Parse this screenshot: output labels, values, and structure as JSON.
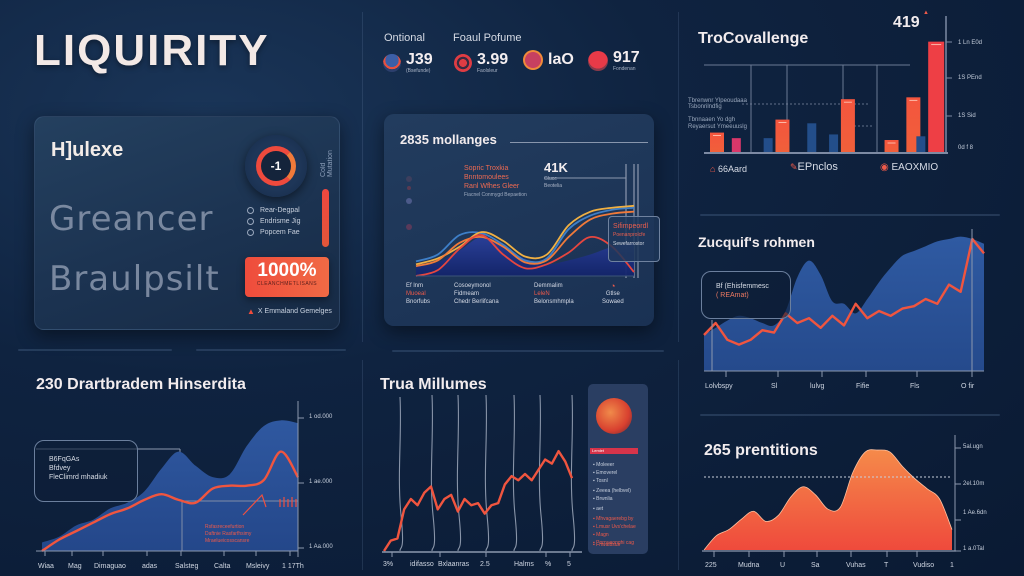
{
  "app": {
    "title": "LIQUIRITY"
  },
  "panel_overview": {
    "title": "H]ulexe",
    "headline_1": "Greancer",
    "headline_2": "Braulpsilt",
    "gauge_value": "-1",
    "side_label": "Cold Mutation",
    "options": [
      {
        "label": "Rear-Degpal",
        "selected": false
      },
      {
        "label": "Endrisme Jig",
        "selected": false
      },
      {
        "label": "Popcem Fae",
        "selected": false
      }
    ],
    "percent_value": "1000%",
    "percent_sublabel": "CLEANCHMETLISANS",
    "warning_text": "X Emmaland Gemelges",
    "accent": "#ef4c3c"
  },
  "stats": {
    "label_1": "Ontional",
    "label_2": "Foaul Pofume",
    "items": [
      {
        "icon": "orbit-icon",
        "value": "J39",
        "sub": "(Bsefunde)"
      },
      {
        "icon": "target-icon",
        "value": "3.99",
        "sub": "Faolsleur"
      },
      {
        "icon": "coin-icon",
        "value": "laO",
        "sub": ""
      },
      {
        "icon": "record-icon",
        "value": "917",
        "sub": "Fondenan"
      }
    ]
  },
  "mollanges_card": {
    "title": "2835 mollanges",
    "note_lines": [
      "Sopric Troxkia",
      "Bnntomoulees",
      "Ranl Wfhes Gleer"
    ],
    "note_sub": "Fiacnel Conmygd Bepaetion",
    "kpi_value": "41K",
    "kpi_sub": [
      "Gluce",
      "Beotelia"
    ],
    "tooltip": {
      "title": "Sifimpeordl",
      "line_1": "Poenanprolcfe",
      "line_2": "Sewefarrostor"
    },
    "footer_col_1": [
      "Ef lnm",
      "Muoeal",
      "Bnorfubs"
    ],
    "footer_col_2": [
      "Cosoeymonol",
      "Fidmeam",
      "Chedr Berlifcana"
    ],
    "footer_col_3": [
      "Demmalim",
      "LeleN",
      "Belonsmhmpla"
    ],
    "footer_col_4": [
      "Gtlse",
      "Sowaed"
    ],
    "chart_data": {
      "type": "line",
      "title": "2835 mollanges",
      "x": [
        0,
        1,
        2,
        3,
        4,
        5,
        6,
        7,
        8,
        9,
        10
      ],
      "series": [
        {
          "name": "Blue",
          "values": [
            15,
            22,
            42,
            44,
            32,
            16,
            18,
            48,
            62,
            68,
            70
          ]
        },
        {
          "name": "Yellow",
          "values": [
            12,
            18,
            30,
            45,
            36,
            20,
            22,
            52,
            66,
            70,
            72
          ]
        },
        {
          "name": "Orange",
          "values": [
            10,
            16,
            34,
            40,
            30,
            14,
            16,
            40,
            58,
            64,
            66
          ]
        },
        {
          "name": "Red",
          "values": [
            0,
            6,
            28,
            42,
            22,
            8,
            12,
            24,
            40,
            30,
            4
          ]
        }
      ],
      "ylim": [
        0,
        80
      ]
    }
  },
  "bar_panel": {
    "title": "TroCovallenge",
    "kpi": "419",
    "y_ticks": [
      "1 Ln E0d",
      "1S PEnd",
      "1S Sid",
      "0d f 8"
    ],
    "legend_lines": [
      "Tbrenwnr Ylpeoudaaa",
      "Tsbonrilndfig",
      "Tbnnaaen Yo dgh",
      "Reyaersut Ymeeuuslg"
    ],
    "footer": [
      {
        "icon": "home-icon",
        "label": "66Aard"
      },
      {
        "icon": "tag-icon",
        "label": "EPnclos"
      },
      {
        "icon": "badge-icon",
        "label": "EAOXMIO"
      }
    ],
    "chart_data": {
      "type": "bar",
      "title": "TroCovallenge",
      "categories": [
        "A",
        "B",
        "C",
        "D",
        "E",
        "F",
        "G",
        "H",
        "I",
        "J",
        "K"
      ],
      "series": [
        {
          "name": "Orange",
          "values": [
            22,
            0,
            0,
            36,
            0,
            0,
            58,
            0,
            14,
            60,
            0
          ]
        },
        {
          "name": "Pink",
          "values": [
            0,
            16,
            0,
            0,
            0,
            0,
            0,
            0,
            0,
            0,
            0
          ]
        },
        {
          "name": "Blue",
          "values": [
            0,
            0,
            16,
            0,
            32,
            20,
            0,
            0,
            0,
            18,
            0
          ]
        },
        {
          "name": "Red",
          "values": [
            0,
            0,
            0,
            0,
            0,
            0,
            0,
            0,
            0,
            0,
            120
          ]
        }
      ],
      "ylim": [
        0,
        125
      ]
    }
  },
  "zuquif_panel": {
    "title": "Zucquif's rohmen",
    "note_lines": [
      "Bf (Ehisfemmesc",
      "( REAmat)"
    ],
    "x_ticks": [
      "Lolvbspy",
      "Sl",
      "lulvg",
      "Fifie",
      "Fls",
      "O fir"
    ],
    "chart_data": {
      "type": "area",
      "title": "Zucquif's rohmen",
      "x": [
        0,
        1,
        2,
        3,
        4,
        5,
        6,
        7,
        8,
        9,
        10,
        11,
        12,
        13,
        14,
        15,
        16,
        17,
        18,
        19,
        20,
        21,
        22,
        23,
        24
      ],
      "series": [
        {
          "name": "Area",
          "values": [
            30,
            36,
            42,
            46,
            44,
            40,
            38,
            50,
            78,
            92,
            80,
            58,
            56,
            48,
            60,
            74,
            86,
            96,
            100,
            104,
            108,
            110,
            112,
            110,
            106
          ]
        },
        {
          "name": "Line",
          "values": [
            30,
            40,
            26,
            22,
            26,
            34,
            32,
            48,
            40,
            44,
            36,
            46,
            38,
            56,
            44,
            50,
            46,
            52,
            54,
            60,
            56,
            72,
            66,
            110,
            98
          ]
        }
      ],
      "ylim": [
        0,
        120
      ]
    }
  },
  "drartbradem_panel": {
    "title": "230 Drartbradem Hinserdita",
    "note_lines": [
      "B6FqGAs",
      "Bfdvey",
      "FleClimrd mhadiuk"
    ],
    "y_ticks": [
      "1 od.000",
      "1 ae.000",
      "1 Aa.000"
    ],
    "x_ticks": [
      "Wiaa",
      "Mag",
      "Dimaguao",
      "adas",
      "Salsteg",
      "Calta",
      "Msleivy",
      "1 17Th"
    ],
    "inset_text": [
      "Rsfasreceefurtion",
      "Daftnie Rasfarfhsimy",
      "Mraelueicosscansre"
    ],
    "chart_data": {
      "type": "area",
      "title": "230 Drartbradem Hinserdita",
      "x": [
        0,
        1,
        2,
        3,
        4,
        5,
        6,
        7,
        8,
        9,
        10,
        11,
        12,
        13,
        14,
        15
      ],
      "series": [
        {
          "name": "Area",
          "values": [
            6,
            10,
            18,
            22,
            30,
            34,
            42,
            58,
            70,
            60,
            52,
            54,
            74,
            88,
            92,
            90
          ]
        },
        {
          "name": "Line",
          "values": [
            0,
            8,
            14,
            20,
            26,
            30,
            36,
            40,
            36,
            34,
            44,
            46,
            46,
            50,
            70,
            52
          ]
        }
      ],
      "ylim": [
        0,
        100
      ]
    }
  },
  "trua_panel": {
    "title": "Trua Millumes",
    "x_ticks": [
      "3%",
      "idifasso",
      "Bxlaanras",
      "2.5",
      "Halms",
      "%",
      "5"
    ],
    "legend": {
      "header": "Lemlet",
      "items": [
        {
          "label": "Moleeer",
          "color": "#c8d0de"
        },
        {
          "label": "Emoverel",
          "color": "#c8d0de"
        },
        {
          "label": "Tosnl",
          "color": "#c8d0de"
        },
        {
          "label": "Zeeea (helbvel)",
          "color": "#c8d0de"
        },
        {
          "label": "Brwnlia",
          "color": "#c8d0de"
        },
        {
          "label": "aet",
          "color": "#c8d0de"
        },
        {
          "label": "Mhvagaerebg by",
          "color": "#ee5a4a"
        },
        {
          "label": "Lmusr Uvs'chelae",
          "color": "#ee5a4a"
        },
        {
          "label": "Magn",
          "color": "#ee5a4a"
        },
        {
          "label": "Pornuaonghi cag",
          "color": "#ee5a4a"
        },
        {
          "label": "Fhwalbsus",
          "color": "#ee5a4a"
        }
      ]
    },
    "chart_data": {
      "type": "line",
      "title": "Trua Millumes",
      "x": [
        0,
        1,
        2,
        3,
        4,
        5,
        6,
        7,
        8,
        9,
        10,
        11,
        12,
        13,
        14,
        15,
        16,
        17,
        18,
        19,
        20,
        21,
        22,
        23,
        24,
        25,
        26,
        27,
        28
      ],
      "series": [
        {
          "name": "Volume",
          "values": [
            0,
            10,
            12,
            40,
            50,
            44,
            56,
            62,
            40,
            50,
            54,
            38,
            50,
            44,
            46,
            36,
            44,
            46,
            64,
            72,
            68,
            74,
            68,
            78,
            88,
            84,
            96,
            86,
            70
          ]
        }
      ],
      "ylim": [
        0,
        100
      ]
    }
  },
  "prentitions_panel": {
    "title": "265 prentitions",
    "y_ticks": [
      "5al.ugn",
      "2el.10m",
      "1 Ae.6dn",
      "1 a.0Tal"
    ],
    "x_ticks": [
      "225",
      "Mudna",
      "U",
      "Sa",
      "Vuhas",
      "T",
      "Vudiso",
      "1"
    ],
    "chart_data": {
      "type": "area",
      "title": "265 prentitions",
      "x": [
        0,
        1,
        2,
        3,
        4,
        5,
        6,
        7,
        8,
        9,
        10,
        11,
        12,
        13,
        14,
        15,
        16,
        17,
        18,
        19,
        20
      ],
      "series": [
        {
          "name": "Area",
          "values": [
            0,
            14,
            20,
            30,
            38,
            28,
            34,
            52,
            62,
            54,
            40,
            42,
            76,
            96,
            98,
            96,
            82,
            70,
            60,
            50,
            20
          ]
        }
      ],
      "ylim": [
        0,
        100
      ]
    }
  }
}
